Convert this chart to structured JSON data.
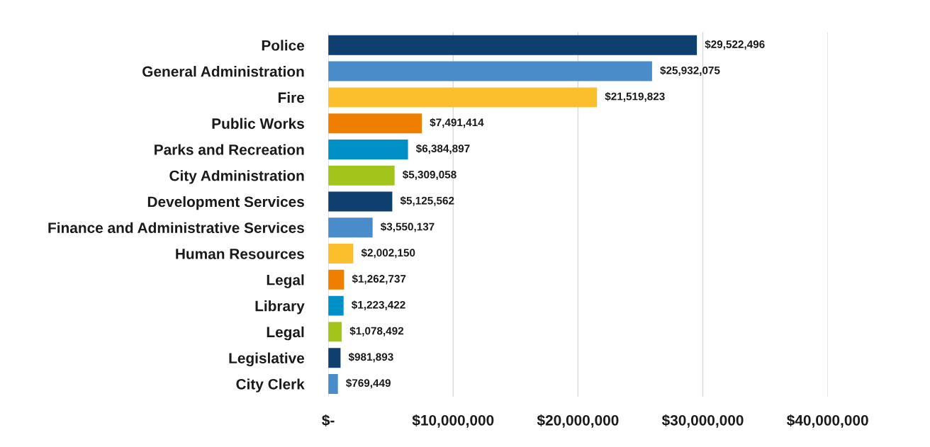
{
  "chart_data": {
    "type": "bar",
    "orientation": "horizontal",
    "categories": [
      "Police",
      "General Administration",
      "Fire",
      "Public Works",
      "Parks and Recreation",
      "City Administration",
      "Development Services",
      "Finance and Administrative Services",
      "Human Resources",
      "Legal",
      "Library",
      "Legal",
      "Legislative",
      "City Clerk"
    ],
    "values": [
      29522496,
      25932075,
      21519823,
      7491414,
      6384897,
      5309058,
      5125562,
      3550137,
      2002150,
      1262737,
      1223422,
      1078492,
      981893,
      769449
    ],
    "value_labels": [
      "$29,522,496",
      "$25,932,075",
      "$21,519,823",
      "$7,491,414",
      "$6,384,897",
      "$5,309,058",
      "$5,125,562",
      "$3,550,137",
      "$2,002,150",
      "$1,262,737",
      "$1,223,422",
      "$1,078,492",
      "$981,893",
      "$769,449"
    ],
    "colors": [
      "#0e3f6e",
      "#4a8bca",
      "#fbbf2e",
      "#ee7f00",
      "#0090c8",
      "#a3c41b",
      "#0e3f6e",
      "#4a8bca",
      "#fbbf2e",
      "#ee7f00",
      "#0090c8",
      "#a3c41b",
      "#0e3f6e",
      "#4a8bca"
    ],
    "xlim": [
      0,
      40000000
    ],
    "xticks": [
      {
        "value": 0,
        "label": "$-"
      },
      {
        "value": 10000000,
        "label": "$10,000,000"
      },
      {
        "value": 20000000,
        "label": "$20,000,000"
      },
      {
        "value": 30000000,
        "label": "$30,000,000"
      },
      {
        "value": 40000000,
        "label": "$40,000,000"
      }
    ],
    "grid": "x",
    "legend": false
  }
}
